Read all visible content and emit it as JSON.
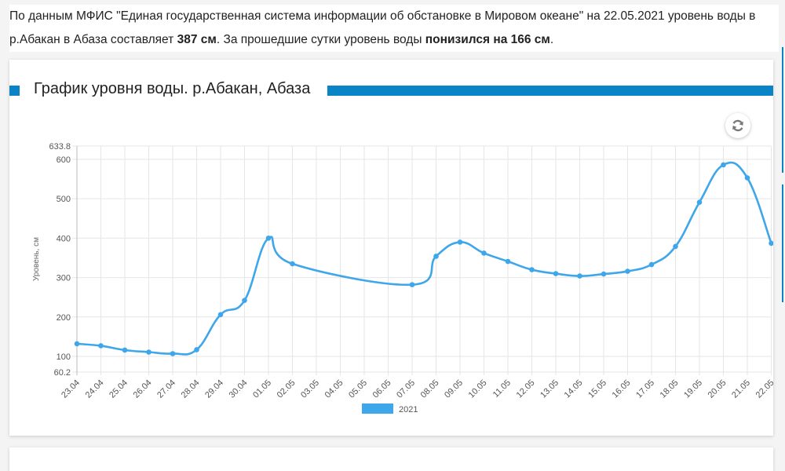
{
  "intro": {
    "part1": "По данным МФИС \"Единая государственная система информации об обстановке в Мировом океане\" на 22.05.2021 уровень воды в р.Абакан в Абаза составляет ",
    "level_value": "387 см",
    "part2": ". За прошедшие сутки уровень воды ",
    "change_value": "понизился на 166 см",
    "part3": "."
  },
  "card": {
    "title": "График уровня воды. р.Абакан, Абаза",
    "refresh_icon": "refresh-icon",
    "accent_color": "#0a84c6"
  },
  "chart_data": {
    "type": "line",
    "title": "",
    "xlabel": "",
    "ylabel": "Уровень, см",
    "categories": [
      "23.04",
      "24.04",
      "25.04",
      "26.04",
      "27.04",
      "28.04",
      "29.04",
      "30.04",
      "01.05",
      "02.05",
      "03.05",
      "04.05",
      "05.05",
      "06.05",
      "07.05",
      "08.05",
      "09.05",
      "10.05",
      "11.05",
      "12.05",
      "13.05",
      "14.05",
      "15.05",
      "16.05",
      "17.05",
      "18.05",
      "19.05",
      "20.05",
      "21.05",
      "22.05"
    ],
    "series": [
      {
        "name": "2021",
        "color": "#3ea6ea",
        "points": [
          {
            "x": "23.04",
            "y": 132
          },
          {
            "x": "24.04",
            "y": 127
          },
          {
            "x": "25.04",
            "y": 116
          },
          {
            "x": "26.04",
            "y": 111
          },
          {
            "x": "27.04",
            "y": 107
          },
          {
            "x": "28.04",
            "y": 117
          },
          {
            "x": "29.04",
            "y": 206
          },
          {
            "x": "30.04",
            "y": 242
          },
          {
            "x": "01.05",
            "y": 400
          },
          {
            "x": "02.05",
            "y": 335
          },
          {
            "x": "07.05",
            "y": 282
          },
          {
            "x": "08.05",
            "y": 354
          },
          {
            "x": "09.05",
            "y": 390
          },
          {
            "x": "10.05",
            "y": 362
          },
          {
            "x": "11.05",
            "y": 341
          },
          {
            "x": "12.05",
            "y": 320
          },
          {
            "x": "13.05",
            "y": 310
          },
          {
            "x": "14.05",
            "y": 304
          },
          {
            "x": "15.05",
            "y": 309
          },
          {
            "x": "16.05",
            "y": 316
          },
          {
            "x": "17.05",
            "y": 333
          },
          {
            "x": "18.05",
            "y": 379
          },
          {
            "x": "19.05",
            "y": 491
          },
          {
            "x": "20.05",
            "y": 586
          },
          {
            "x": "21.05",
            "y": 553
          },
          {
            "x": "22.05",
            "y": 387
          }
        ]
      }
    ],
    "yticks": [
      "60.2",
      "100",
      "200",
      "300",
      "400",
      "500",
      "600",
      "633.8"
    ],
    "ylim": [
      60.2,
      633.8
    ],
    "grid": true,
    "legend": "bottom"
  }
}
